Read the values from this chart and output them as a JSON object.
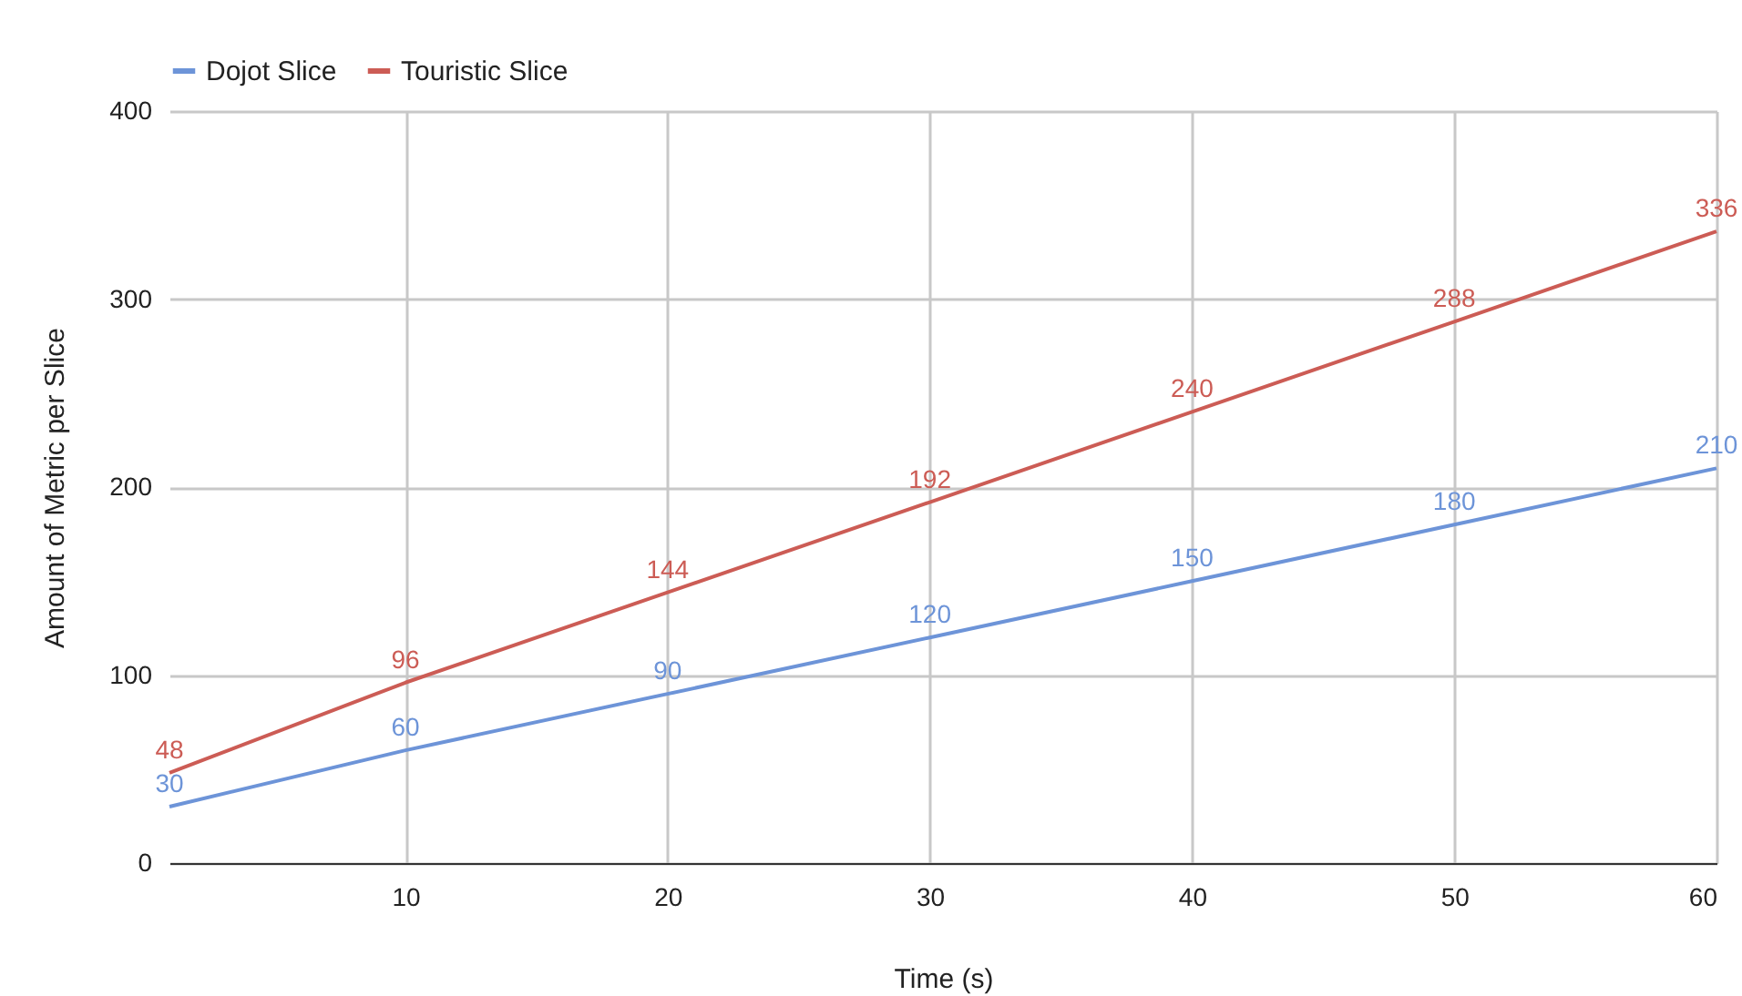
{
  "chart_data": {
    "type": "line",
    "xlabel": "Time (s)",
    "ylabel": "Amount of Metric per Slice",
    "x": [
      1,
      10,
      20,
      30,
      40,
      50,
      60
    ],
    "series": [
      {
        "name": "Dojot Slice",
        "color": "#6d94d8",
        "values": [
          30,
          60,
          90,
          120,
          150,
          180,
          210
        ]
      },
      {
        "name": "Touristic Slice",
        "color": "#cc5c55",
        "values": [
          48,
          96,
          144,
          192,
          240,
          288,
          336
        ]
      }
    ],
    "xlim": [
      1,
      60
    ],
    "xticks": [
      10,
      20,
      30,
      40,
      50,
      60
    ],
    "ylim": [
      0,
      400
    ],
    "yticks": [
      0,
      100,
      200,
      300,
      400
    ],
    "grid": true,
    "legend": "top",
    "data_labels": true,
    "marker": "none",
    "line_style": "solid"
  }
}
